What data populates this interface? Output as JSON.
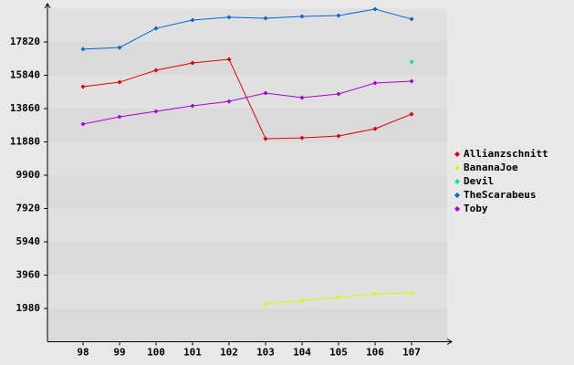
{
  "chart_data": {
    "type": "line",
    "categories": [
      "98",
      "99",
      "100",
      "101",
      "102",
      "103",
      "104",
      "105",
      "106",
      "107"
    ],
    "ylim": [
      0,
      19800
    ],
    "yticks": [
      1980,
      3960,
      5940,
      7920,
      9900,
      11880,
      13860,
      15840,
      17820
    ],
    "legend": "right",
    "series": [
      {
        "name": "Allianzschnitt",
        "color": "#e00000",
        "values": [
          15160,
          15430,
          16140,
          16570,
          16790,
          12070,
          12120,
          12230,
          12660,
          13530
        ]
      },
      {
        "name": "BananaJoe",
        "color": "#ccff00",
        "values": [
          null,
          null,
          null,
          null,
          null,
          2250,
          2470,
          2630,
          2850,
          2900
        ]
      },
      {
        "name": "Devil",
        "color": "#00ee77",
        "values": [
          null,
          null,
          null,
          null,
          null,
          null,
          null,
          null,
          null,
          16630
        ]
      },
      {
        "name": "TheScarabeus",
        "color": "#0066dd",
        "values": [
          17390,
          17490,
          18630,
          19120,
          19290,
          19230,
          19340,
          19390,
          19770,
          19180
        ]
      },
      {
        "name": "Toby",
        "color": "#aa00dd",
        "values": [
          12940,
          13370,
          13700,
          14020,
          14290,
          14780,
          14510,
          14730,
          15380,
          15490
        ]
      }
    ]
  }
}
